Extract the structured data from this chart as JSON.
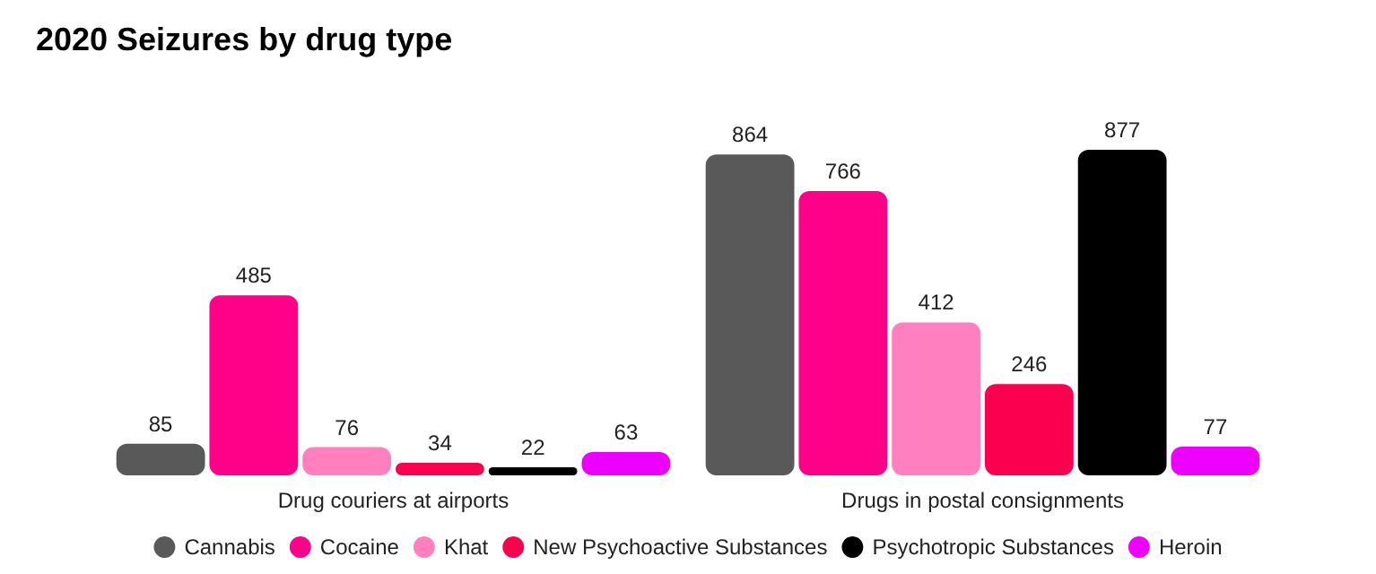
{
  "chart_data": {
    "type": "bar",
    "title": "2020 Seizures by drug type",
    "categories": [
      "Drug couriers at airports",
      "Drugs in postal consignments"
    ],
    "series": [
      {
        "name": "Cannabis",
        "color": "#595959",
        "values": [
          85,
          864
        ]
      },
      {
        "name": "Cocaine",
        "color": "#ff0088",
        "values": [
          485,
          766
        ]
      },
      {
        "name": "Khat",
        "color": "#ff7fbf",
        "values": [
          76,
          412
        ]
      },
      {
        "name": "New Psychoactive Substances",
        "color": "#fa004f",
        "values": [
          34,
          246
        ]
      },
      {
        "name": "Psychotropic Substances",
        "color": "#000000",
        "values": [
          22,
          877
        ]
      },
      {
        "name": "Heroin",
        "color": "#ee00ff",
        "values": [
          63,
          77
        ]
      }
    ],
    "data_labels": true,
    "legend": "bottom"
  }
}
